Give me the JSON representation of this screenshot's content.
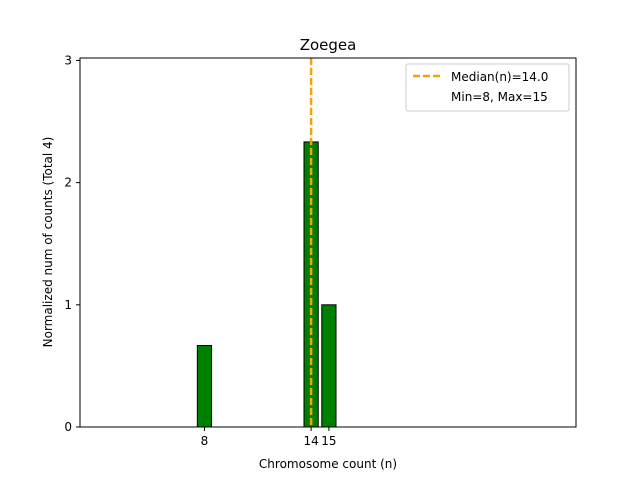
{
  "chart_data": {
    "type": "bar",
    "title": "Zoegea",
    "xlabel": "Chromosome count (n)",
    "ylabel": "Normalized num of counts     (Total 4)",
    "x": [
      8,
      14,
      15
    ],
    "values": [
      0.667,
      2.333,
      1.0
    ],
    "xticks": [
      8,
      14,
      15
    ],
    "xtick_labels": [
      "8",
      "14",
      "15"
    ],
    "yticks": [
      0,
      1,
      2,
      3
    ],
    "xlim": [
      1.0,
      28.9
    ],
    "ylim": [
      0,
      3.02
    ],
    "bar_color": "#008000",
    "bar_edge_color": "#000000",
    "median": {
      "value": 14.0,
      "color": "#f0a30a",
      "label": "Median(n)=14.0"
    },
    "legend": {
      "position": "top-right",
      "entries": [
        "Median(n)=14.0",
        "Min=8, Max=15"
      ]
    },
    "grid": false
  }
}
